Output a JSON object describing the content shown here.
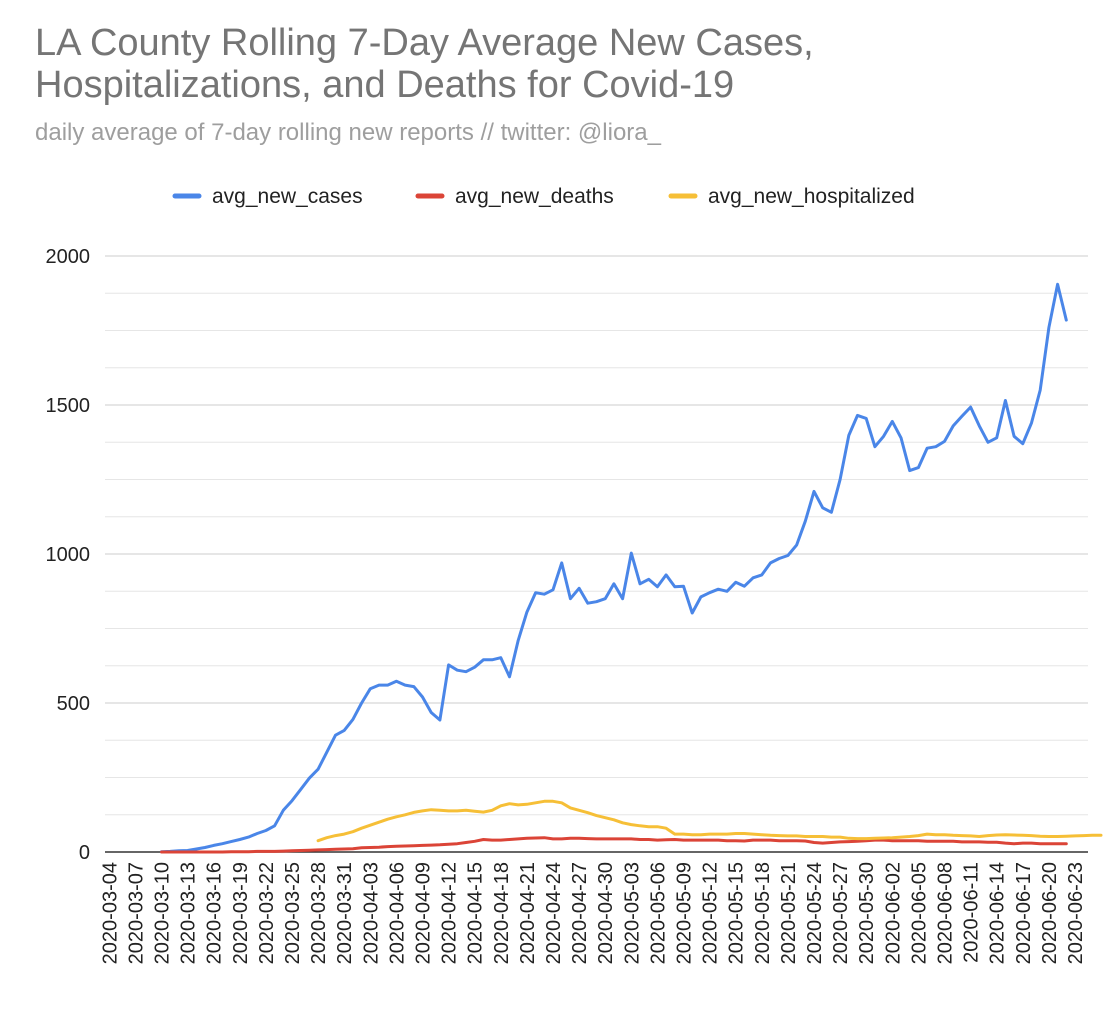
{
  "chart_data": {
    "type": "line",
    "title": [
      "LA County Rolling 7-Day Average New Cases,",
      "Hospitalizations, and Deaths for Covid-19"
    ],
    "subtitle": "daily average of 7-day rolling new reports // twitter: @liora_",
    "xlabel": "",
    "ylabel": "",
    "ylim": [
      0,
      2000
    ],
    "yticks": [
      0,
      500,
      1000,
      1500,
      2000
    ],
    "grid": true,
    "legend_position": "top",
    "x_start": "2020-03-04",
    "x_tick_labels": [
      "2020-03-04",
      "2020-03-07",
      "2020-03-10",
      "2020-03-13",
      "2020-03-16",
      "2020-03-19",
      "2020-03-22",
      "2020-03-25",
      "2020-03-28",
      "2020-03-31",
      "2020-04-03",
      "2020-04-06",
      "2020-04-09",
      "2020-04-12",
      "2020-04-15",
      "2020-04-18",
      "2020-04-21",
      "2020-04-24",
      "2020-04-27",
      "2020-04-30",
      "2020-05-03",
      "2020-05-06",
      "2020-05-09",
      "2020-05-12",
      "2020-05-15",
      "2020-05-18",
      "2020-05-21",
      "2020-05-24",
      "2020-05-27",
      "2020-05-30",
      "2020-06-02",
      "2020-06-05",
      "2020-06-08",
      "2020-06-11",
      "2020-06-14",
      "2020-06-17",
      "2020-06-20",
      "2020-06-23"
    ],
    "series": [
      {
        "name": "avg_new_cases",
        "color": "#4a86e8",
        "start_index": 6,
        "values": [
          1,
          2,
          4,
          5,
          10,
          15,
          22,
          28,
          35,
          42,
          50,
          62,
          72,
          88,
          140,
          172,
          210,
          248,
          278,
          335,
          392,
          408,
          445,
          500,
          548,
          560,
          560,
          573,
          560,
          555,
          520,
          468,
          443,
          628,
          610,
          605,
          620,
          645,
          645,
          652,
          588,
          710,
          805,
          870,
          865,
          880,
          970,
          850,
          885,
          835,
          840,
          850,
          900,
          850,
          1003,
          900,
          915,
          890,
          930,
          890,
          892,
          802,
          856,
          870,
          882,
          875,
          905,
          892,
          920,
          930,
          970,
          985,
          995,
          1030,
          1110,
          1210,
          1155,
          1140,
          1250,
          1398,
          1465,
          1455,
          1360,
          1395,
          1445,
          1390,
          1280,
          1290,
          1355,
          1360,
          1378,
          1430,
          1462,
          1493,
          1430,
          1375,
          1390,
          1515,
          1395,
          1370,
          1440,
          1550,
          1760,
          1905,
          1785
        ]
      },
      {
        "name": "avg_new_deaths",
        "color": "#db4437",
        "start_index": 6,
        "values": [
          0,
          0,
          0,
          0,
          0,
          0,
          0,
          0,
          1,
          1,
          1,
          2,
          2,
          2,
          3,
          4,
          5,
          6,
          7,
          8,
          9,
          10,
          11,
          14,
          15,
          16,
          18,
          19,
          20,
          21,
          22,
          23,
          24,
          26,
          28,
          32,
          36,
          42,
          40,
          40,
          42,
          44,
          46,
          47,
          48,
          44,
          44,
          46,
          46,
          45,
          44,
          44,
          44,
          44,
          44,
          42,
          42,
          40,
          41,
          42,
          40,
          40,
          40,
          40,
          40,
          38,
          38,
          37,
          40,
          40,
          40,
          38,
          38,
          38,
          37,
          32,
          30,
          32,
          34,
          35,
          36,
          38,
          40,
          40,
          38,
          38,
          38,
          38,
          36,
          36,
          36,
          36,
          34,
          34,
          34,
          33,
          33,
          30,
          28,
          30,
          30,
          28,
          28,
          28,
          28
        ]
      },
      {
        "name": "avg_new_hospitalized",
        "color": "#f6bf37",
        "start_index": 24,
        "values": [
          38,
          48,
          55,
          60,
          68,
          80,
          90,
          100,
          110,
          118,
          125,
          133,
          138,
          142,
          140,
          138,
          138,
          140,
          137,
          134,
          140,
          155,
          162,
          158,
          160,
          165,
          170,
          170,
          165,
          148,
          140,
          132,
          122,
          115,
          108,
          98,
          92,
          88,
          85,
          85,
          80,
          60,
          60,
          58,
          58,
          60,
          60,
          60,
          62,
          62,
          60,
          58,
          56,
          55,
          54,
          54,
          52,
          52,
          52,
          50,
          50,
          46,
          45,
          45,
          46,
          47,
          48,
          50,
          52,
          55,
          60,
          58,
          58,
          56,
          55,
          54,
          52,
          55,
          57,
          58,
          57,
          56,
          55,
          53,
          52,
          52,
          53,
          54,
          55,
          56,
          56
        ]
      }
    ]
  }
}
